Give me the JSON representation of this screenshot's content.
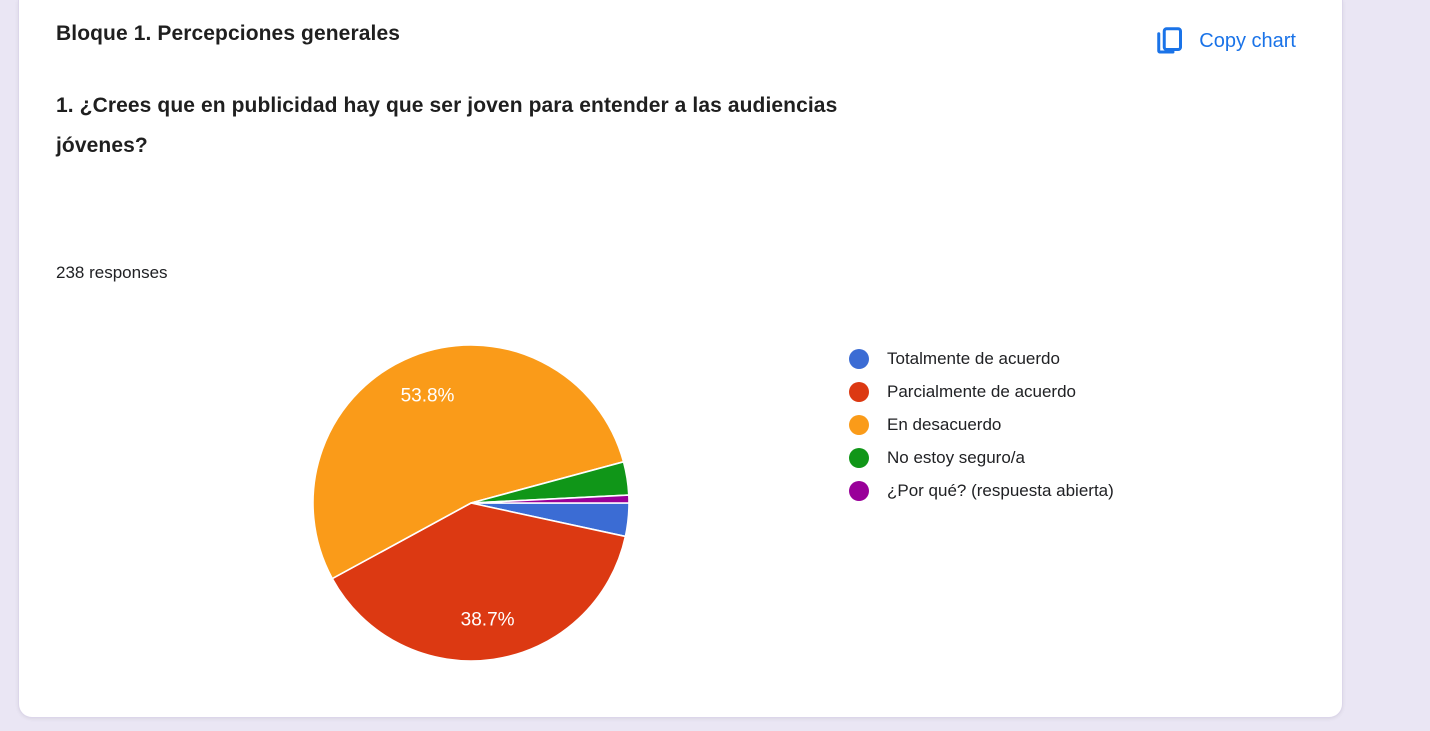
{
  "page": {
    "background_color": "#EAE6F4"
  },
  "card": {
    "section_title": "Bloque 1. Percepciones generales",
    "question_lines": [
      "1. ¿Crees que en publicidad hay que ser joven para entender a las audiencias",
      "jóvenes?"
    ],
    "responses_count": "238 responses",
    "copy_button": {
      "label": "Copy chart",
      "color": "#1A73E8",
      "icon": "copy-icon"
    }
  },
  "chart_data": {
    "type": "pie",
    "title": "1. ¿Crees que en publicidad hay que ser joven para entender a las audiencias jóvenes?",
    "responses_total": 238,
    "legend_position": "right",
    "start_angle": "3-o'clock, clockwise",
    "slices": [
      {
        "label": "Totalmente de acuerdo",
        "percent": 3.4,
        "color": "#3B6CD4",
        "data_label": ""
      },
      {
        "label": "Parcialmente de acuerdo",
        "percent": 38.7,
        "color": "#DC3912",
        "data_label": "38.7%"
      },
      {
        "label": "En desacuerdo",
        "percent": 53.8,
        "color": "#FA9B19",
        "data_label": "53.8%"
      },
      {
        "label": "No estoy seguro/a",
        "percent": 3.4,
        "color": "#109618",
        "data_label": ""
      },
      {
        "label": "¿Por qué? (respuesta abierta)",
        "percent": 0.8,
        "color": "#990099",
        "data_label": ""
      }
    ],
    "data_label_color": "#ffffff"
  }
}
